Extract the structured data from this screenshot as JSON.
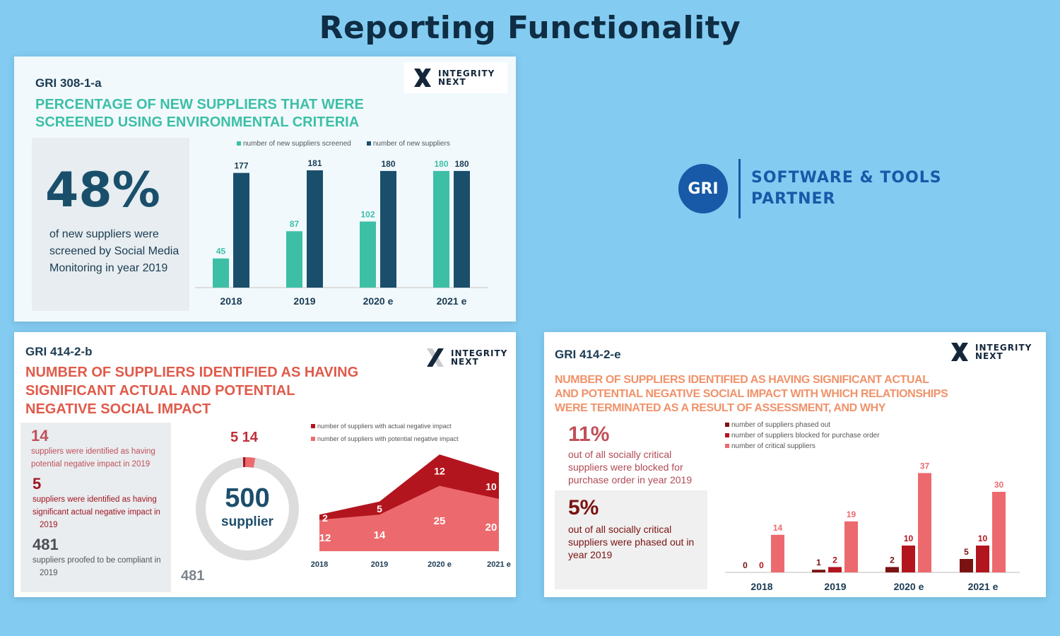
{
  "page_title": "Reporting Functionality",
  "gri_partner": {
    "badge": "GRI",
    "line1": "SOFTWARE & TOOLS",
    "line2": "PARTNER"
  },
  "logo": {
    "line1": "INTEGRITY",
    "line2": "NEXT"
  },
  "slide1": {
    "code": "GRI 308-1-a",
    "heading1": "PERCENTAGE OF NEW SUPPLIERS THAT WERE",
    "heading2": "SCREENED USING ENVIRONMENTAL CRITERIA",
    "stat": "48%",
    "stat_text1": "of new suppliers were",
    "stat_text2": "screened by Social Media",
    "stat_text3": "Monitoring in year  2019",
    "legend": [
      "number of new suppliers screened",
      "number of new suppliers"
    ]
  },
  "slide2": {
    "code": "GRI 414-2-b",
    "heading1": "NUMBER OF SUPPLIERS IDENTIFIED AS HAVING",
    "heading2": "SIGNIFICANT ACTUAL AND POTENTIAL",
    "heading3": "NEGATIVE SOCIAL IMPACT",
    "stat1": "14",
    "stat1_text1": "suppliers were identified as having",
    "stat1_text2": "potential negative impact in  2019",
    "stat2": "5",
    "stat2_text1": "suppliers were identified as having",
    "stat2_text2": "significant actual negative impact in",
    "stat2_text3": "2019",
    "stat3": "481",
    "stat3_text1": "suppliers proofed to be compliant in",
    "stat3_text2": "2019",
    "donut_total": "500",
    "donut_unit": "supplier",
    "donut_top_labels": "5 14",
    "donut_side_label": "481",
    "legend": [
      "number of suppliers with actual negative impact",
      "number of suppliers with potential negative impact"
    ]
  },
  "slide3": {
    "code": "GRI 414-2-e",
    "heading1": "NUMBER OF SUPPLIERS IDENTIFIED AS HAVING SIGNIFICANT ACTUAL",
    "heading2": "AND POTENTIAL NEGATIVE SOCIAL IMPACT WITH WHICH RELATIONSHIPS",
    "heading3": "WERE TERMINATED AS A RESULT OF ASSESSMENT, AND WHY",
    "stat1": "11%",
    "stat1_text1": "out of all socially critical",
    "stat1_text2": "suppliers were blocked for",
    "stat1_text3": "purchase order in year  2019",
    "stat2": "5%",
    "stat2_text1": "out of all socially critical",
    "stat2_text2": "suppliers were phased out in",
    "stat2_text3": "year    2019",
    "legend": [
      "number of suppliers phased out",
      "number of suppliers blocked for purchase order",
      "number of critical suppliers"
    ]
  },
  "colors": {
    "background": "#83cbf1",
    "teal": "#3dbfa6",
    "navy": "#1a4f6b",
    "dark_red": "#7a1212",
    "red": "#b3151e",
    "light_red": "#ec6a6e",
    "gri_blue": "#1859a8"
  },
  "chart_data": [
    {
      "type": "bar",
      "categories": [
        "2018",
        "2019",
        "2020 e",
        "2021 e"
      ],
      "series": [
        {
          "name": "number of new suppliers screened",
          "values": [
            45,
            87,
            102,
            180
          ],
          "color": "#3dbfa6"
        },
        {
          "name": "number of new suppliers",
          "values": [
            177,
            181,
            180,
            180
          ],
          "color": "#1a4f6b"
        }
      ]
    },
    {
      "type": "area",
      "stacked": true,
      "categories": [
        "2018",
        "2019",
        "2020 e",
        "2021 e"
      ],
      "series": [
        {
          "name": "number of suppliers with potential negative impact",
          "values": [
            12,
            14,
            25,
            20
          ],
          "color": "#ec6a6e"
        },
        {
          "name": "number of suppliers with actual negative impact",
          "values": [
            2,
            5,
            12,
            10
          ],
          "color": "#b3151e"
        }
      ]
    },
    {
      "type": "bar",
      "categories": [
        "2018",
        "2019",
        "2020 e",
        "2021 e"
      ],
      "series": [
        {
          "name": "number of suppliers phased out",
          "values": [
            0,
            1,
            2,
            5
          ],
          "color": "#7a1212"
        },
        {
          "name": "number of suppliers blocked for purchase order",
          "values": [
            0,
            2,
            10,
            10
          ],
          "color": "#b3151e"
        },
        {
          "name": "number of critical suppliers",
          "values": [
            14,
            19,
            37,
            30
          ],
          "color": "#ec6a6e"
        }
      ]
    }
  ]
}
